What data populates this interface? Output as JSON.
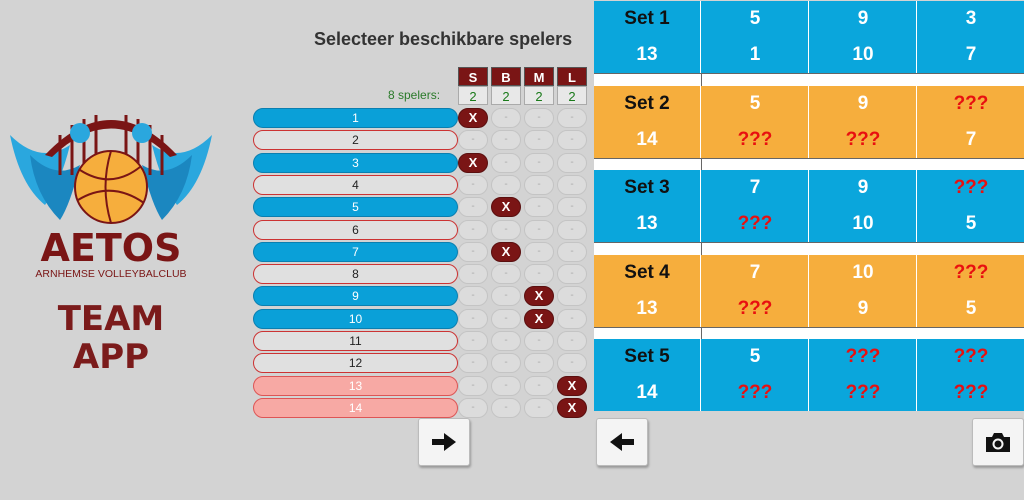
{
  "brand": {
    "name": "AETOS",
    "subtitle": "ARNHEMSE VOLLEYBALCLUB",
    "team_app_line1": "TEAM",
    "team_app_line2": "APP"
  },
  "selection": {
    "title": "Selecteer beschikbare spelers",
    "count_label": "8 spelers:",
    "positions": [
      {
        "label": "S",
        "required": "2"
      },
      {
        "label": "B",
        "required": "2"
      },
      {
        "label": "M",
        "required": "2"
      },
      {
        "label": "L",
        "required": "2"
      }
    ],
    "players": [
      {
        "number": "1",
        "state": "blue",
        "marks": [
          "X",
          "-",
          "-",
          "-"
        ]
      },
      {
        "number": "2",
        "state": "grey",
        "marks": [
          "-",
          "-",
          "-",
          "-"
        ]
      },
      {
        "number": "3",
        "state": "blue",
        "marks": [
          "X",
          "-",
          "-",
          "-"
        ]
      },
      {
        "number": "4",
        "state": "grey",
        "marks": [
          "-",
          "-",
          "-",
          "-"
        ]
      },
      {
        "number": "5",
        "state": "blue",
        "marks": [
          "-",
          "X",
          "-",
          "-"
        ]
      },
      {
        "number": "6",
        "state": "grey",
        "marks": [
          "-",
          "-",
          "-",
          "-"
        ]
      },
      {
        "number": "7",
        "state": "blue",
        "marks": [
          "-",
          "X",
          "-",
          "-"
        ]
      },
      {
        "number": "8",
        "state": "grey",
        "marks": [
          "-",
          "-",
          "-",
          "-"
        ]
      },
      {
        "number": "9",
        "state": "blue",
        "marks": [
          "-",
          "-",
          "X",
          "-"
        ]
      },
      {
        "number": "10",
        "state": "blue",
        "marks": [
          "-",
          "-",
          "X",
          "-"
        ]
      },
      {
        "number": "11",
        "state": "grey",
        "marks": [
          "-",
          "-",
          "-",
          "-"
        ]
      },
      {
        "number": "12",
        "state": "grey",
        "marks": [
          "-",
          "-",
          "-",
          "-"
        ]
      },
      {
        "number": "13",
        "state": "pink",
        "marks": [
          "-",
          "-",
          "-",
          "X"
        ]
      },
      {
        "number": "14",
        "state": "pink",
        "marks": [
          "-",
          "-",
          "-",
          "X"
        ]
      }
    ],
    "next_icon": "arrow-right-icon"
  },
  "sets": [
    {
      "label": "Set 1",
      "color": "blue",
      "row1": [
        "5",
        "9",
        "3"
      ],
      "row2": [
        "13",
        "1",
        "10",
        "7"
      ]
    },
    {
      "label": "Set 2",
      "color": "orange",
      "row1": [
        "5",
        "9",
        "???"
      ],
      "row2": [
        "14",
        "???",
        "???",
        "7"
      ]
    },
    {
      "label": "Set 3",
      "color": "blue",
      "row1": [
        "7",
        "9",
        "???"
      ],
      "row2": [
        "13",
        "???",
        "10",
        "5"
      ]
    },
    {
      "label": "Set 4",
      "color": "orange",
      "row1": [
        "7",
        "10",
        "???"
      ],
      "row2": [
        "13",
        "???",
        "9",
        "5"
      ]
    },
    {
      "label": "Set 5",
      "color": "blue",
      "row1": [
        "5",
        "???",
        "???"
      ],
      "row2": [
        "14",
        "???",
        "???",
        "???"
      ]
    }
  ],
  "actions": {
    "back_icon": "arrow-left-icon",
    "camera_icon": "camera-icon"
  },
  "colors": {
    "brand_maroon": "#7a1515",
    "selected_blue": "#0aa0d8",
    "libero_pink": "#f7a9a4",
    "set_blue": "#0aa6dc",
    "set_orange": "#f6ae3d",
    "unknown_red": "#e81010"
  }
}
